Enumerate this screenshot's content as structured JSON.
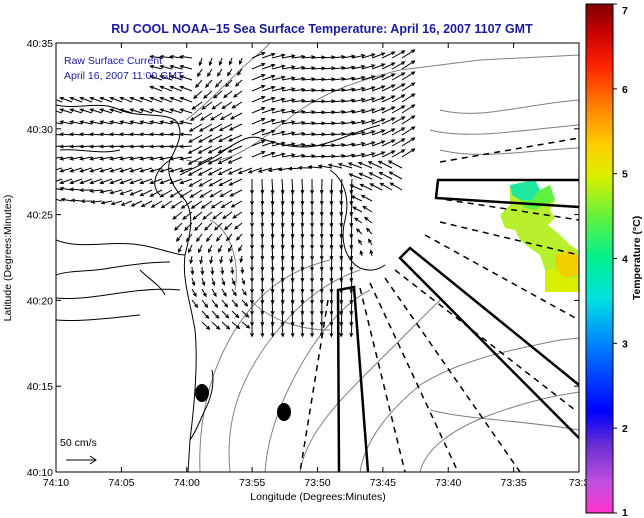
{
  "title": "RU COOL  NOAA–15  Sea Surface Temperature:  April 16, 2007 1107 GMT",
  "legend": {
    "line1": "Raw Surface Current",
    "line2": "April 16, 2007 11:00 GMT"
  },
  "axes": {
    "xlabel": "Longitude (Degrees:Minutes)",
    "ylabel": "Latitude (Degrees:Minutes)",
    "xticks": [
      "74:10",
      "74:05",
      "74:00",
      "73:55",
      "73:50",
      "73:45",
      "73:40",
      "73:35",
      "73:3"
    ],
    "yticks": [
      "40:35",
      "40:30",
      "40:25",
      "40:20",
      "40:15",
      "40:10"
    ]
  },
  "colorbar": {
    "label": "Temperature (°C)",
    "ticks": [
      "7",
      "6",
      "5",
      "4",
      "3",
      "2",
      "1"
    ],
    "range": [
      1,
      7
    ]
  },
  "scale_arrow": {
    "label": "50 cm/s"
  },
  "colors": {
    "title": "#1a1aa0",
    "coast": "#000000",
    "bathymetry": "#808080",
    "arrows": "#000000"
  }
}
